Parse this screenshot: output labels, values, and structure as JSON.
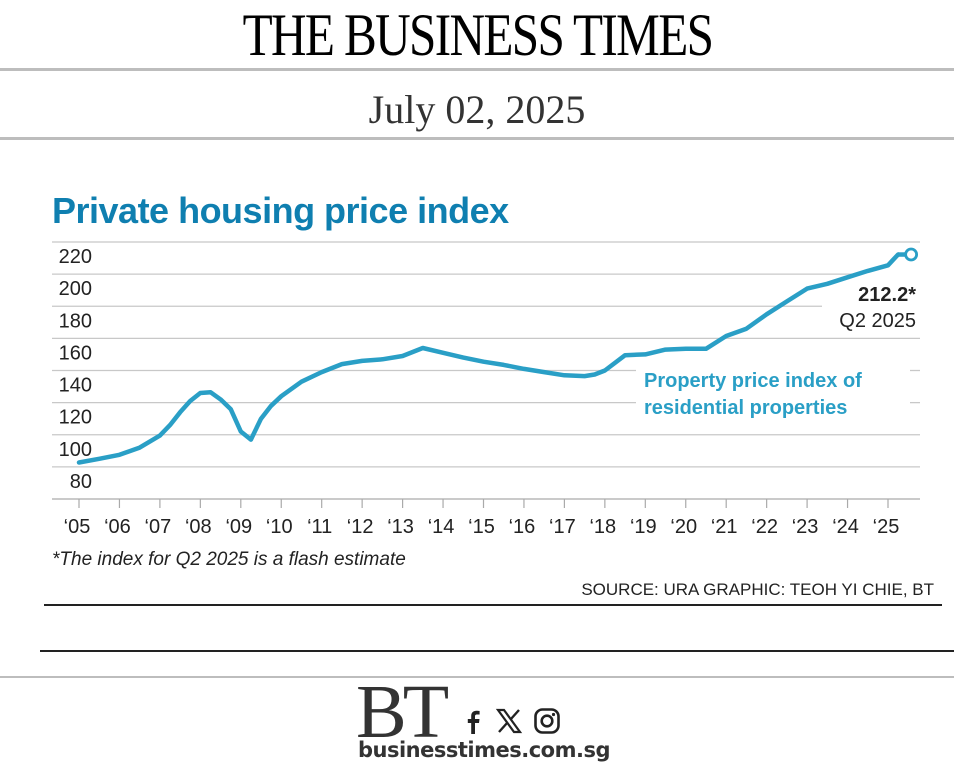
{
  "masthead": {
    "title": "THE BUSINESS TIMES",
    "date": "July 02, 2025"
  },
  "chart_title": "Private housing price index",
  "footnote": "*The index for Q2 2025 is a flash estimate",
  "source": "SOURCE: URA   GRAPHIC: TEOH YI CHIE, BT",
  "footer": {
    "logo": "BT",
    "url": "businesstimes.com.sg",
    "social_icons": [
      "facebook-icon",
      "x-icon",
      "instagram-icon"
    ]
  },
  "colors": {
    "title": "#0f7fb0",
    "line": "#2a9fc6",
    "legend": "#2a9fc6",
    "grid": "#c8c8c8",
    "text": "#222222"
  },
  "chart_data": {
    "type": "line",
    "title": "Private housing price index",
    "xlabel": "",
    "ylabel": "",
    "ylim": [
      60,
      220
    ],
    "xlim": [
      2005,
      2025.5
    ],
    "yticks": [
      80,
      100,
      120,
      140,
      160,
      180,
      200,
      220
    ],
    "ytick_labels": [
      "80",
      "100",
      "120",
      "140",
      "160",
      "180",
      "200",
      "220"
    ],
    "xticks": [
      2005,
      2006,
      2007,
      2008,
      2009,
      2010,
      2011,
      2012,
      2013,
      2014,
      2015,
      2016,
      2017,
      2018,
      2019,
      2020,
      2021,
      2022,
      2023,
      2024,
      2025
    ],
    "xtick_labels": [
      "‘05",
      "‘06",
      "‘07",
      "‘08",
      "‘09",
      "‘10",
      "‘11",
      "‘12",
      "‘13",
      "‘14",
      "‘15",
      "‘16",
      "‘17",
      "‘18",
      "‘19",
      "‘20",
      "‘21",
      "‘22",
      "‘23",
      "‘24",
      "‘25"
    ],
    "grid": true,
    "series": [
      {
        "name": "Property price index of residential properties",
        "x": [
          2005.0,
          2005.5,
          2006.0,
          2006.5,
          2007.0,
          2007.25,
          2007.5,
          2007.75,
          2008.0,
          2008.25,
          2008.5,
          2008.75,
          2009.0,
          2009.25,
          2009.5,
          2009.75,
          2010.0,
          2010.5,
          2011.0,
          2011.5,
          2012.0,
          2012.5,
          2013.0,
          2013.5,
          2014.0,
          2014.5,
          2015.0,
          2015.5,
          2016.0,
          2016.5,
          2017.0,
          2017.5,
          2017.75,
          2018.0,
          2018.5,
          2019.0,
          2019.5,
          2020.0,
          2020.5,
          2021.0,
          2021.5,
          2022.0,
          2022.5,
          2023.0,
          2023.5,
          2024.0,
          2024.5,
          2025.0,
          2025.25
        ],
        "values": [
          82.7,
          85,
          87.5,
          92,
          99.5,
          106,
          114,
          121,
          126,
          126.5,
          122,
          116,
          102,
          97,
          110,
          118,
          124,
          133,
          139,
          144,
          146,
          147,
          149,
          154,
          151,
          148,
          145.5,
          143.5,
          141,
          139,
          137,
          136.5,
          137.5,
          140,
          149.5,
          150,
          153,
          153.5,
          153.5,
          161.5,
          166,
          175,
          183,
          191,
          194,
          198,
          202,
          205.5,
          212.2
        ]
      }
    ],
    "annotations": [
      {
        "text": "212.2*",
        "note": "Q2 2025",
        "x": 2025.25,
        "y": 212.2
      },
      {
        "text": "Property price index of residential properties",
        "role": "series-label"
      }
    ],
    "legend": "inline-right"
  }
}
